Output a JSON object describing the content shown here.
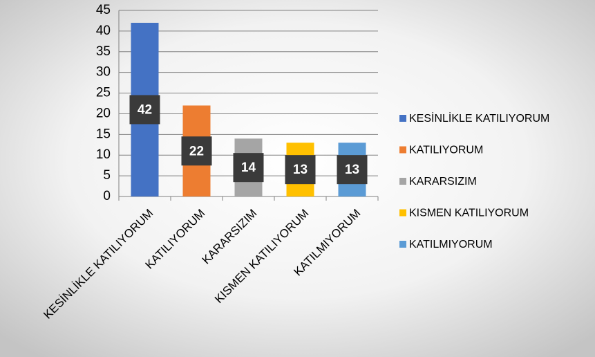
{
  "chart_data": {
    "type": "bar",
    "categories": [
      "KESİNLİKLE KATILIYORUM",
      "KATILIYORUM",
      "KARARSIZIM",
      "KISMEN KATILIYORUM",
      "KATILMIYORUM"
    ],
    "values": [
      42,
      22,
      14,
      13,
      13
    ],
    "colors": [
      "#4472c4",
      "#ed7d31",
      "#a5a5a5",
      "#ffc000",
      "#5b9bd5"
    ],
    "ylim": [
      0,
      45
    ],
    "yticks": [
      0,
      5,
      10,
      15,
      20,
      25,
      30,
      35,
      40,
      45
    ],
    "grid": true,
    "legend": "right",
    "data_labels": true
  }
}
